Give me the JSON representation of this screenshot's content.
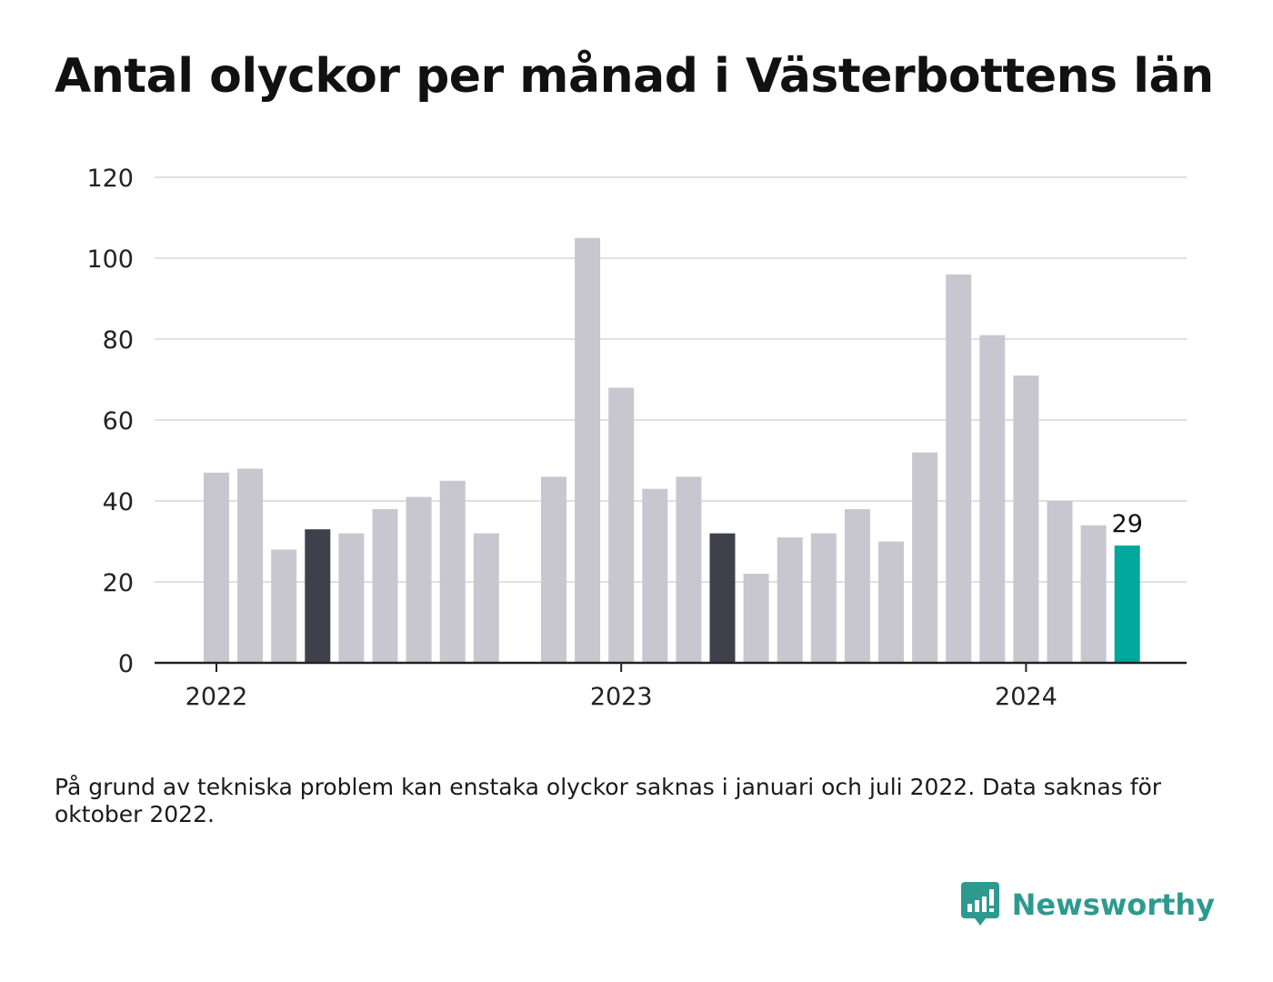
{
  "title": "Antal olyckor per månad i Västerbottens län",
  "note": "På grund av tekniska problem kan enstaka olyckor saknas i januari och juli 2022. Data saknas för oktober 2022.",
  "brand": {
    "name": "Newsworthy",
    "icon": "newsworthy-logo-icon"
  },
  "colors": {
    "default": "#c8c7d0",
    "highlight": "#40404d",
    "latest": "#00a79a",
    "grid": "#e0e0e0",
    "axis": "#222222"
  },
  "chart_data": {
    "type": "bar",
    "title": "Antal olyckor per månad i Västerbottens län",
    "ylim": [
      0,
      120
    ],
    "yticks": [
      0,
      20,
      40,
      60,
      80,
      100,
      120
    ],
    "xticks": [
      "2022",
      "2023",
      "2024"
    ],
    "grid": true,
    "categories": [
      "2022-01",
      "2022-02",
      "2022-03",
      "2022-04",
      "2022-05",
      "2022-06",
      "2022-07",
      "2022-08",
      "2022-09",
      "2022-10",
      "2022-11",
      "2022-12",
      "2023-01",
      "2023-02",
      "2023-03",
      "2023-04",
      "2023-05",
      "2023-06",
      "2023-07",
      "2023-08",
      "2023-09",
      "2023-10",
      "2023-11",
      "2023-12",
      "2024-01",
      "2024-02",
      "2024-03",
      "2024-04"
    ],
    "values": [
      47,
      48,
      28,
      33,
      32,
      38,
      41,
      45,
      32,
      null,
      46,
      105,
      68,
      43,
      46,
      32,
      22,
      31,
      32,
      38,
      30,
      52,
      96,
      81,
      71,
      40,
      34,
      29
    ],
    "highlight": [
      "2022-04",
      "2023-04"
    ],
    "latest": "2024-04",
    "data_labels": [
      {
        "category": "2024-04",
        "text": "29"
      }
    ]
  }
}
